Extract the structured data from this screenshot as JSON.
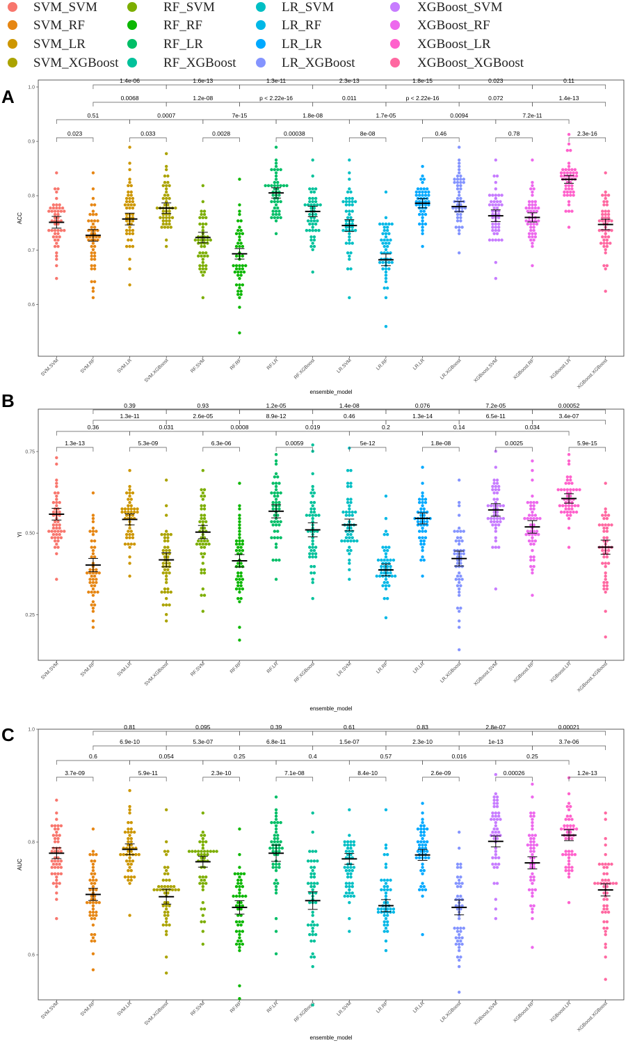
{
  "colors": {
    "SVM_SVM": "#F8766D",
    "SVM_RF": "#E68613",
    "SVM_LR": "#CD9600",
    "SVM_XGBoost": "#ABA300",
    "RF_SVM": "#7CAE00",
    "RF_RF": "#0CB702",
    "RF_LR": "#00BE67",
    "RF_XGBoost": "#00C19A",
    "LR_SVM": "#00BFC4",
    "LR_RF": "#00B8E7",
    "LR_LR": "#00A9FF",
    "LR_XGBoost": "#8494FF",
    "XGBoost_SVM": "#C77CFF",
    "XGBoost_RF": "#ED68ED",
    "XGBoost_LR": "#FF61CC",
    "XGBoost_XGBoost": "#FF68A1"
  },
  "legend": {
    "columns": [
      [
        "SVM_SVM",
        "SVM_RF",
        "SVM_LR",
        "SVM_XGBoost"
      ],
      [
        "RF_SVM",
        "RF_RF",
        "RF_LR",
        "RF_XGBoost"
      ],
      [
        "LR_SVM",
        "LR_RF",
        "LR_LR",
        "LR_XGBoost"
      ],
      [
        "XGBoost_SVM",
        "XGBoost_RF",
        "XGBoost_LR",
        "XGBoost_XGBoost"
      ]
    ]
  },
  "chart_data": [
    {
      "panel": "A",
      "type": "scatter",
      "xlabel": "ensemble_model",
      "ylabel": "ACC",
      "ylim": [
        0.525,
        1.0
      ],
      "yticks": [
        "0.6",
        "0.7",
        "0.8",
        "0.9",
        "1.0"
      ],
      "ytick_values": [
        0.6,
        0.7,
        0.8,
        0.9,
        1.0
      ],
      "categories": [
        "SVM.SVM",
        "SVM.RF",
        "SVM.LR",
        "SVM.XGBoost",
        "RF.SVM",
        "RF.RF",
        "RF.LR",
        "RF.XGBoost",
        "LR.SVM",
        "LR.RF",
        "LR.LR",
        "LR.XGBoost",
        "XGBoost.SVM",
        "XGBoost.RF",
        "XGBoost.LR",
        "XGBoost.XGBoost"
      ],
      "means": [
        0.751,
        0.727,
        0.757,
        0.777,
        0.723,
        0.693,
        0.805,
        0.771,
        0.745,
        0.682,
        0.786,
        0.78,
        0.763,
        0.76,
        0.83,
        0.747
      ],
      "mins": [
        0.648,
        0.613,
        0.635,
        0.705,
        0.613,
        0.545,
        0.728,
        0.66,
        0.613,
        0.557,
        0.705,
        0.695,
        0.648,
        0.672,
        0.74,
        0.625
      ],
      "maxs": [
        0.842,
        0.842,
        0.888,
        0.875,
        0.82,
        0.83,
        0.888,
        0.865,
        0.865,
        0.808,
        0.855,
        0.888,
        0.865,
        0.865,
        0.91,
        0.842
      ],
      "sems": [
        0.009,
        0.009,
        0.009,
        0.008,
        0.008,
        0.008,
        0.008,
        0.008,
        0.009,
        0.009,
        0.007,
        0.008,
        0.009,
        0.007,
        0.006,
        0.008
      ],
      "comparisons": {
        "row1": [
          "0.023",
          "0.033",
          "0.0028",
          "0.00038",
          "8e-08",
          "0.46",
          "0.78",
          "2.3e-16"
        ],
        "row2": [
          "0.51",
          "0.0007",
          "7e-15",
          "1.8e-08",
          "1.7e-05",
          "0.0094",
          "7.2e-11"
        ],
        "row3": [
          "0.0068",
          "1.2e-08",
          "p < 2.22e-16",
          "0.011",
          "p < 2.22e-16",
          "0.072",
          "1.4e-13"
        ],
        "row4": [
          "1.4e-06",
          "1.6e-13",
          "1.3e-11",
          "2.3e-13",
          "1.8e-15",
          "0.023",
          "0.11"
        ]
      }
    },
    {
      "panel": "B",
      "type": "scatter",
      "xlabel": "ensemble_model",
      "ylabel": "YI",
      "ylim": [
        0.11,
        0.88
      ],
      "yticks": [
        "0.25",
        "0.50",
        "0.75"
      ],
      "ytick_values": [
        0.25,
        0.5,
        0.75
      ],
      "categories": [
        "SVM.SVM",
        "SVM.RF",
        "SVM.LR",
        "SVM.XGBoost",
        "RF.SVM",
        "RF.RF",
        "RF.LR",
        "RF.XGBoost",
        "LR.SVM",
        "LR.RF",
        "LR.LR",
        "LR.XGBoost",
        "XGBoost.SVM",
        "XGBoost.RF",
        "XGBoost.LR",
        "XGBoost.XGBoost"
      ],
      "means": [
        0.558,
        0.402,
        0.542,
        0.418,
        0.503,
        0.415,
        0.567,
        0.51,
        0.525,
        0.387,
        0.545,
        0.422,
        0.571,
        0.519,
        0.606,
        0.457
      ],
      "mins": [
        0.355,
        0.21,
        0.365,
        0.228,
        0.26,
        0.17,
        0.355,
        0.295,
        0.355,
        0.245,
        0.37,
        0.14,
        0.33,
        0.31,
        0.46,
        0.18
      ],
      "maxs": [
        0.73,
        0.62,
        0.69,
        0.665,
        0.69,
        0.655,
        0.74,
        0.77,
        0.76,
        0.61,
        0.7,
        0.665,
        0.75,
        0.725,
        0.745,
        0.65
      ],
      "sems": [
        0.015,
        0.017,
        0.014,
        0.018,
        0.017,
        0.016,
        0.017,
        0.018,
        0.015,
        0.015,
        0.014,
        0.019,
        0.016,
        0.016,
        0.012,
        0.018
      ],
      "comparisons": {
        "row1": [
          "1.3e-13",
          "5.3e-09",
          "6.3e-06",
          "0.0059",
          "5e-12",
          "1.8e-08",
          "0.0025",
          "5.9e-15"
        ],
        "row2": [
          "0.36",
          "0.031",
          "0.0008",
          "0.019",
          "0.2",
          "0.14",
          "0.034"
        ],
        "row3": [
          "1.3e-11",
          "2.6e-05",
          "8.9e-12",
          "0.46",
          "1.3e-14",
          "6.5e-11",
          "3.4e-07"
        ],
        "row4": [
          "0.39",
          "0.93",
          "1.2e-05",
          "1.4e-08",
          "0.076",
          "7.2e-05",
          "0.00052"
        ]
      }
    },
    {
      "panel": "C",
      "type": "scatter",
      "xlabel": "ensemble_model",
      "ylabel": "AUC",
      "ylim": [
        0.52,
        1.0
      ],
      "yticks": [
        "0.6",
        "0.8",
        "1.0"
      ],
      "ytick_values": [
        0.6,
        0.8,
        1.0
      ],
      "categories": [
        "SVM.SVM",
        "SVM.RF",
        "SVM.LR",
        "SVM.XGBoost",
        "RF.SVM",
        "RF.RF",
        "RF.LR",
        "RF.XGBoost",
        "LR.SVM",
        "LR.RF",
        "LR.LR",
        "LR.XGBoost",
        "XGBoost.SVM",
        "XGBoost.RF",
        "XGBoost.LR",
        "XGBoost.XGBoost"
      ],
      "means": [
        0.78,
        0.707,
        0.787,
        0.703,
        0.765,
        0.684,
        0.78,
        0.696,
        0.77,
        0.687,
        0.777,
        0.684,
        0.801,
        0.763,
        0.812,
        0.715
      ],
      "mins": [
        0.662,
        0.575,
        0.672,
        0.565,
        0.617,
        0.523,
        0.6,
        0.513,
        0.64,
        0.608,
        0.636,
        0.535,
        0.663,
        0.613,
        0.695,
        0.556
      ],
      "maxs": [
        0.872,
        0.822,
        0.892,
        0.856,
        0.852,
        0.823,
        0.882,
        0.852,
        0.856,
        0.855,
        0.87,
        0.82,
        0.92,
        0.9,
        0.912,
        0.852
      ],
      "sems": [
        0.008,
        0.009,
        0.008,
        0.011,
        0.008,
        0.01,
        0.012,
        0.013,
        0.008,
        0.009,
        0.008,
        0.011,
        0.008,
        0.009,
        0.008,
        0.009
      ],
      "comparisons": {
        "row1": [
          "3.7e-09",
          "5.9e-11",
          "2.3e-10",
          "7.1e-08",
          "8.4e-10",
          "2.6e-09",
          "0.00026",
          "1.2e-13"
        ],
        "row2": [
          "0.6",
          "0.054",
          "0.25",
          "0.4",
          "0.57",
          "0.016",
          "0.25"
        ],
        "row3": [
          "6.9e-10",
          "5.3e-07",
          "6.8e-11",
          "1.5e-07",
          "2.3e-10",
          "1e-13",
          "3.7e-06"
        ],
        "row4": [
          "0.81",
          "0.095",
          "0.39",
          "0.61",
          "0.83",
          "2.8e-07",
          "0.00021"
        ]
      }
    }
  ]
}
